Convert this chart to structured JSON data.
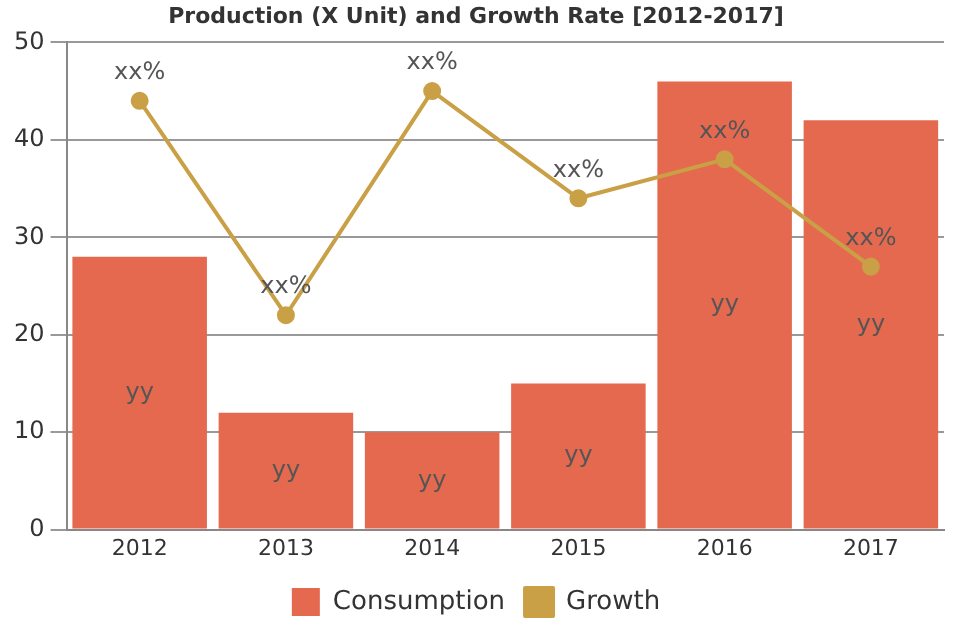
{
  "chart_data": {
    "type": "bar",
    "title": "Production (X Unit) and Growth Rate [2012-2017]",
    "categories": [
      "2012",
      "2013",
      "2014",
      "2015",
      "2016",
      "2017"
    ],
    "series": [
      {
        "name": "Consumption",
        "color": "#e5694f",
        "values": [
          28,
          12,
          10,
          15,
          46,
          42
        ],
        "value_labels": [
          "yy",
          "yy",
          "yy",
          "yy",
          "yy",
          "yy"
        ]
      },
      {
        "name": "Growth",
        "type": "line",
        "color": "#c9a045",
        "values": [
          44,
          22,
          45,
          34,
          38,
          27
        ],
        "value_labels": [
          "xx%",
          "xx%",
          "xx%",
          "xx%",
          "xx%",
          "xx%"
        ]
      }
    ],
    "ylim": [
      0,
      50
    ],
    "yticks": [
      0,
      10,
      20,
      30,
      40,
      50
    ],
    "grid": "y",
    "legend": "bottom",
    "marker": "circle"
  }
}
